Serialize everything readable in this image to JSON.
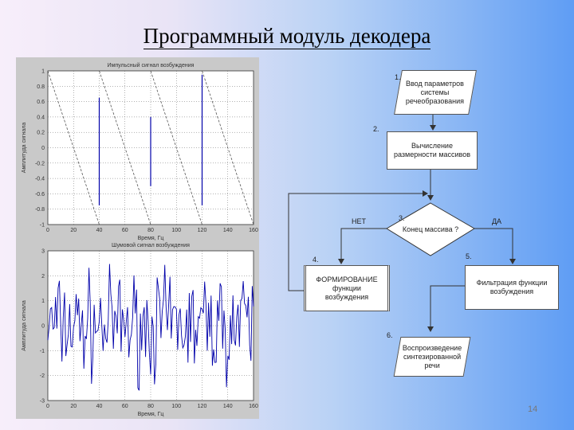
{
  "title": "Программный модуль декодера",
  "page_number": "14",
  "charts": {
    "top": {
      "title": "Импульсный сигнал возбуждения",
      "xlabel": "Время, Гц",
      "ylabel": "Амплитуда сигнала",
      "xticks": [
        "0",
        "20",
        "40",
        "60",
        "80",
        "100",
        "120",
        "140",
        "160"
      ],
      "yticks": [
        "1",
        "0.8",
        "0.6",
        "0.4",
        "0.2",
        "0",
        "-0.2",
        "-0.4",
        "-0.6",
        "-0.8",
        "-1"
      ]
    },
    "bottom": {
      "title": "Шумовой сигнал возбуждения",
      "xlabel": "Время, Гц",
      "ylabel": "Амплитуда сигнала",
      "xticks": [
        "0",
        "20",
        "40",
        "60",
        "80",
        "100",
        "120",
        "140",
        "160"
      ],
      "yticks": [
        "3",
        "2",
        "1",
        "0",
        "-1",
        "-2",
        "-3"
      ]
    }
  },
  "chart_data": [
    {
      "type": "line",
      "title": "Импульсный сигнал возбуждения",
      "xlabel": "Время, Гц",
      "ylabel": "Амплитуда сигнала",
      "xlim": [
        0,
        160
      ],
      "ylim": [
        -1,
        1
      ],
      "grid": true,
      "sawtooth_x": [
        0,
        40,
        80,
        120,
        160
      ],
      "impulses": [
        {
          "x": 40,
          "values": [
            0.65,
            -0.75
          ]
        },
        {
          "x": 80,
          "values": [
            0.4,
            -0.5
          ]
        },
        {
          "x": 120,
          "values": [
            0.95,
            -0.75
          ]
        }
      ]
    },
    {
      "type": "line",
      "title": "Шумовой сигнал возбуждения",
      "xlabel": "Время, Гц",
      "ylabel": "Амплитуда сигнала",
      "xlim": [
        0,
        160
      ],
      "ylim": [
        -3,
        3
      ],
      "grid": true,
      "noise": true
    }
  ],
  "flowchart": {
    "box1": {
      "step": "1.",
      "text": [
        "Ввод параметров",
        "системы",
        "речеобразования"
      ]
    },
    "box2": {
      "step": "2.",
      "text": [
        "Вычисление",
        "размерности массивов"
      ]
    },
    "decision": {
      "step": "3.",
      "text": "Конец массива ?",
      "no": "НЕТ",
      "yes": "ДА"
    },
    "box4": {
      "step": "4.",
      "text": [
        "ФОРМИРОВАНИЕ",
        "функции",
        "возбуждения"
      ]
    },
    "box5": {
      "step": "5.",
      "text": [
        "Фильтрация функции",
        "возбуждения"
      ]
    },
    "box6": {
      "step": "6.",
      "text": [
        "Воспроизведение",
        "синтезированной",
        "речи"
      ]
    }
  }
}
